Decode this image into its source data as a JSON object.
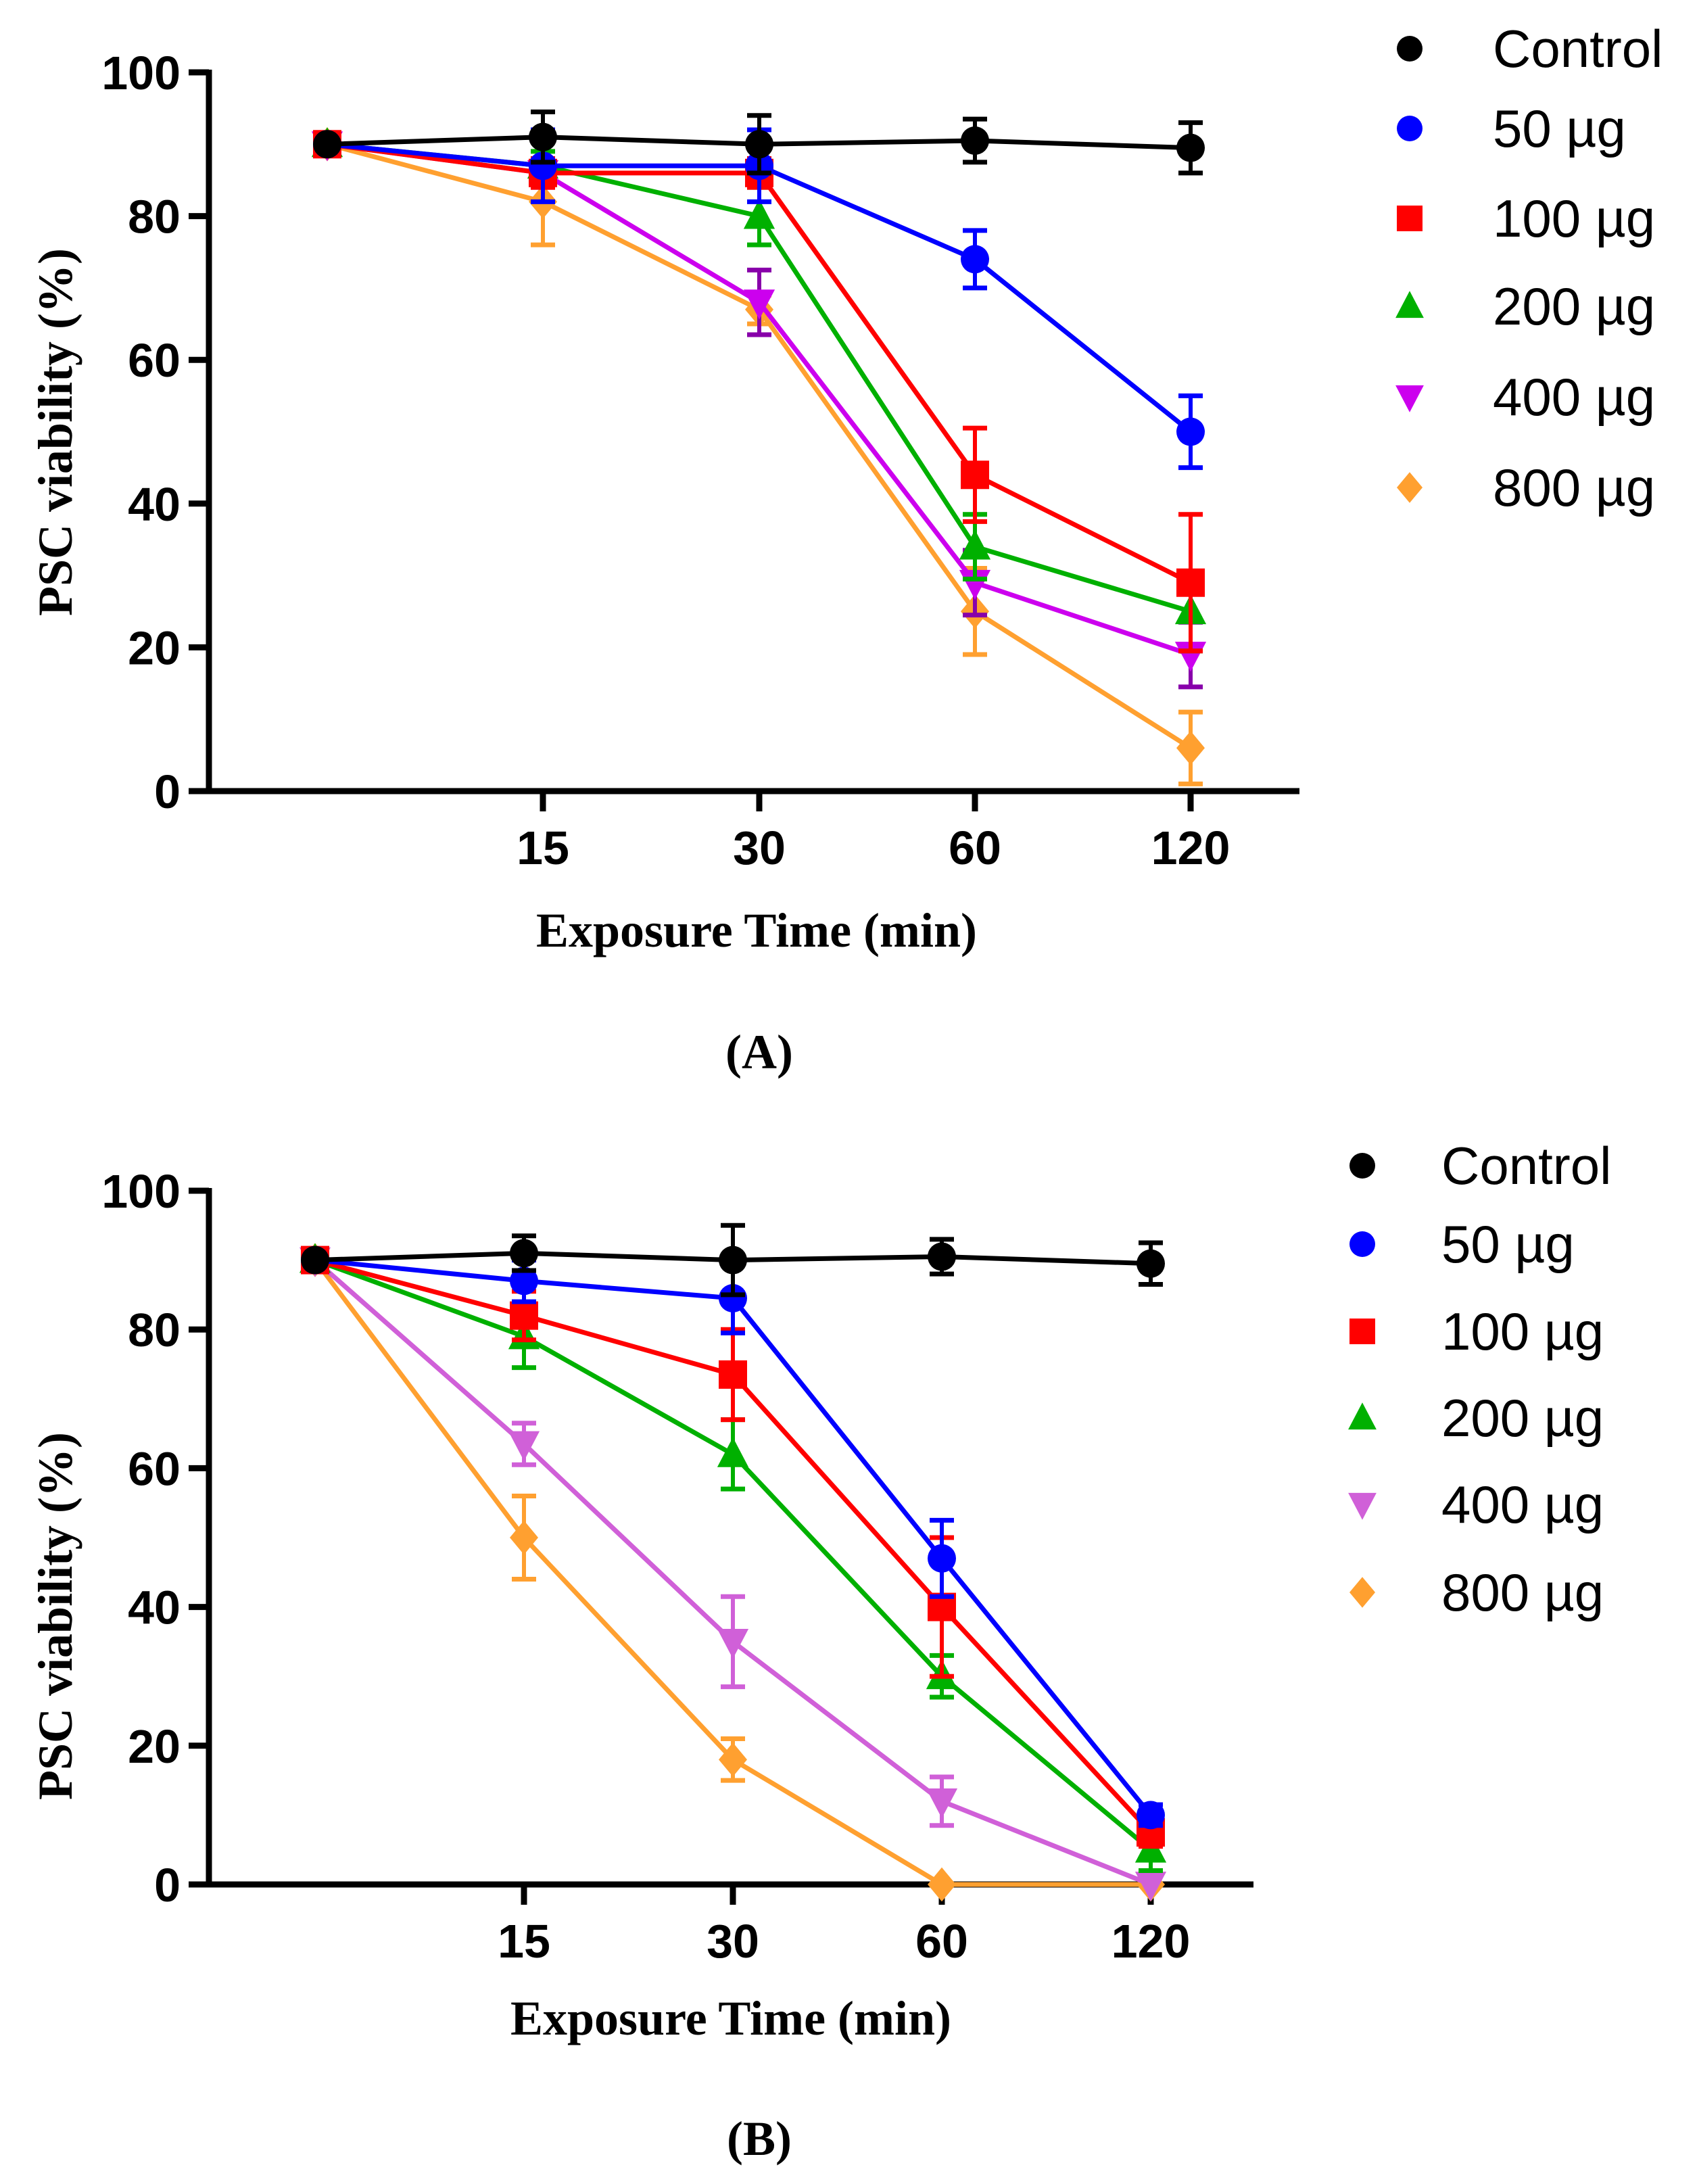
{
  "chart_data": [
    {
      "type": "line",
      "panel_label": "(A)",
      "xlabel": "Exposure Time  (min)",
      "ylabel": "PSC viability (%)",
      "categories": [
        "",
        "15",
        "30",
        "60",
        "120"
      ],
      "ylim": [
        0,
        100
      ],
      "yticks": [
        0,
        20,
        40,
        60,
        80,
        100
      ],
      "legend_position": "right",
      "series": [
        {
          "name": "Control",
          "marker": "circle",
          "color": "#000000",
          "err_color": "#000000",
          "values": [
            90,
            91,
            90,
            90.5,
            89.5
          ],
          "errors": [
            0,
            3.5,
            4,
            3,
            3.5
          ]
        },
        {
          "name": "50 µg",
          "marker": "circle",
          "color": "#0000FF",
          "err_color": "#0000FF",
          "values": [
            90,
            87,
            87,
            74,
            50
          ],
          "errors": [
            0,
            5,
            5,
            4,
            5
          ]
        },
        {
          "name": "100 µg",
          "marker": "square",
          "color": "#FF0000",
          "err_color": "#FF0000",
          "values": [
            90,
            86,
            86,
            44,
            29
          ],
          "errors": [
            0,
            2,
            2,
            6.5,
            9.5
          ]
        },
        {
          "name": "200 µg",
          "marker": "triangle-up",
          "color": "#00B000",
          "err_color": "#00B000",
          "values": [
            90,
            87,
            80,
            34,
            25
          ],
          "errors": [
            0,
            2,
            4,
            4.5,
            5.5
          ]
        },
        {
          "name": "400 µg",
          "marker": "triangle-down",
          "color": "#CC00EE",
          "err_color": "#8800AA",
          "values": [
            90,
            86,
            68,
            29,
            19
          ],
          "errors": [
            0,
            2,
            4.5,
            4.5,
            4.5
          ]
        },
        {
          "name": "800 µg",
          "marker": "diamond",
          "color": "#FFA030",
          "err_color": "#FFA030",
          "values": [
            90,
            82,
            67,
            25,
            6
          ],
          "errors": [
            0,
            6,
            2,
            6,
            5
          ]
        }
      ]
    },
    {
      "type": "line",
      "panel_label": "(B)",
      "xlabel": "Exposure Time  (min)",
      "ylabel": "PSC viability (%)",
      "categories": [
        "",
        "15",
        "30",
        "60",
        "120"
      ],
      "ylim": [
        0,
        100
      ],
      "yticks": [
        0,
        20,
        40,
        60,
        80,
        100
      ],
      "legend_position": "right",
      "series": [
        {
          "name": "Control",
          "marker": "circle",
          "color": "#000000",
          "err_color": "#000000",
          "values": [
            90,
            91,
            90,
            90.5,
            89.5
          ],
          "errors": [
            0,
            2.5,
            5,
            2.5,
            3
          ]
        },
        {
          "name": "50 µg",
          "marker": "circle",
          "color": "#0000FF",
          "err_color": "#0000FF",
          "values": [
            90,
            87,
            84.5,
            47,
            10
          ],
          "errors": [
            0,
            3,
            5,
            5.5,
            1.5
          ]
        },
        {
          "name": "100 µg",
          "marker": "square",
          "color": "#FF0000",
          "err_color": "#FF0000",
          "values": [
            90,
            82,
            73.5,
            40,
            7.5
          ],
          "errors": [
            0,
            3.5,
            6.5,
            10,
            2
          ]
        },
        {
          "name": "200 µg",
          "marker": "triangle-up",
          "color": "#00B000",
          "err_color": "#00B000",
          "values": [
            90,
            79,
            62,
            30,
            5
          ],
          "errors": [
            0,
            4.5,
            5,
            3,
            3
          ]
        },
        {
          "name": "400 µg",
          "marker": "triangle-down",
          "color": "#D060D8",
          "err_color": "#D060D8",
          "values": [
            90,
            63.5,
            35,
            12,
            0
          ],
          "errors": [
            0,
            3,
            6.5,
            3.5,
            0
          ]
        },
        {
          "name": "800 µg",
          "marker": "diamond",
          "color": "#FFA030",
          "err_color": "#FFA030",
          "values": [
            90,
            50,
            18,
            0,
            0
          ],
          "errors": [
            0,
            6,
            3,
            0,
            0
          ]
        }
      ]
    }
  ]
}
